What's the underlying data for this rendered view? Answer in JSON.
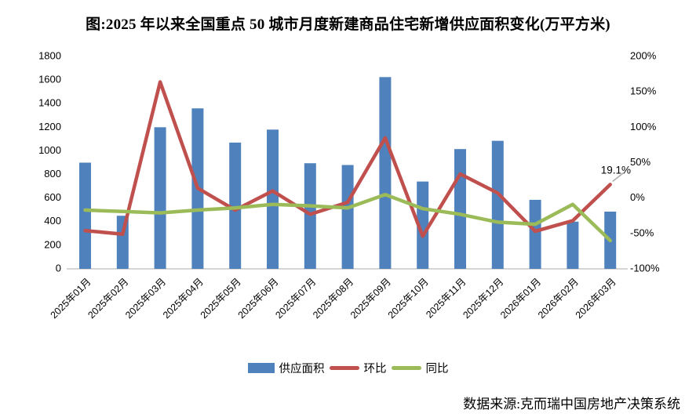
{
  "title": "图:2025 年以来全国重点 50 城市月度新建商品住宅新增供应面积变化(万平方米)",
  "source": "数据来源:克而瑞中国房地产决策系统",
  "colors": {
    "bar": "#4f81bd",
    "mom_line": "#c0504d",
    "yoy_line": "#9bbb59",
    "baseline": "#d6d6d6",
    "leader": "#a6a6a6",
    "tick_text": "#000000"
  },
  "legend": {
    "items": [
      {
        "label": "供应面积",
        "swatch": "bar"
      },
      {
        "label": "环比",
        "swatch": "line-red"
      },
      {
        "label": "同比",
        "swatch": "line-green"
      }
    ]
  },
  "annotation": {
    "text": "19.1%"
  },
  "chart_data": {
    "type": "combo-bar-line",
    "title": "图:2025 年以来全国重点 50 城市月度新建商品住宅新增供应面积变化(万平方米)",
    "categories": [
      "2025年01月",
      "2025年02月",
      "2025年03月",
      "2025年04月",
      "2025年05月",
      "2025年06月",
      "2025年07月",
      "2025年08月",
      "2025年09月",
      "2025年10月",
      "2025年11月",
      "2025年12月",
      "2026年01月",
      "2026年02月",
      "2026年03月"
    ],
    "series": [
      {
        "name": "供应面积",
        "type": "bar",
        "axis": "left",
        "unit": "万平方米",
        "values": [
          900,
          450,
          1200,
          1360,
          1070,
          1180,
          895,
          880,
          1625,
          740,
          1015,
          1085,
          585,
          400,
          485
        ]
      },
      {
        "name": "环比",
        "type": "line",
        "axis": "right",
        "unit": "%",
        "values": [
          -46,
          -51,
          164,
          14,
          -17,
          10,
          -23,
          -6,
          85,
          -54,
          34,
          7,
          -47,
          -32,
          19.1
        ]
      },
      {
        "name": "同比",
        "type": "line",
        "axis": "right",
        "unit": "%",
        "values": [
          -17,
          -19,
          -21,
          -17,
          -14,
          -9,
          -11,
          -14,
          5,
          -15,
          -23,
          -34,
          -37,
          -9,
          -60
        ]
      }
    ],
    "left_axis": {
      "min": 0,
      "max": 1800,
      "step": 200,
      "ticks": [
        "1800",
        "1600",
        "1400",
        "1200",
        "1000",
        "800",
        "600",
        "400",
        "200",
        "0"
      ]
    },
    "right_axis": {
      "min": -100,
      "max": 200,
      "step": 50,
      "ticks": [
        "200%",
        "150%",
        "100%",
        "50%",
        "0%",
        "-50%",
        "-100%"
      ]
    },
    "grid": false,
    "legend_position": "bottom"
  }
}
